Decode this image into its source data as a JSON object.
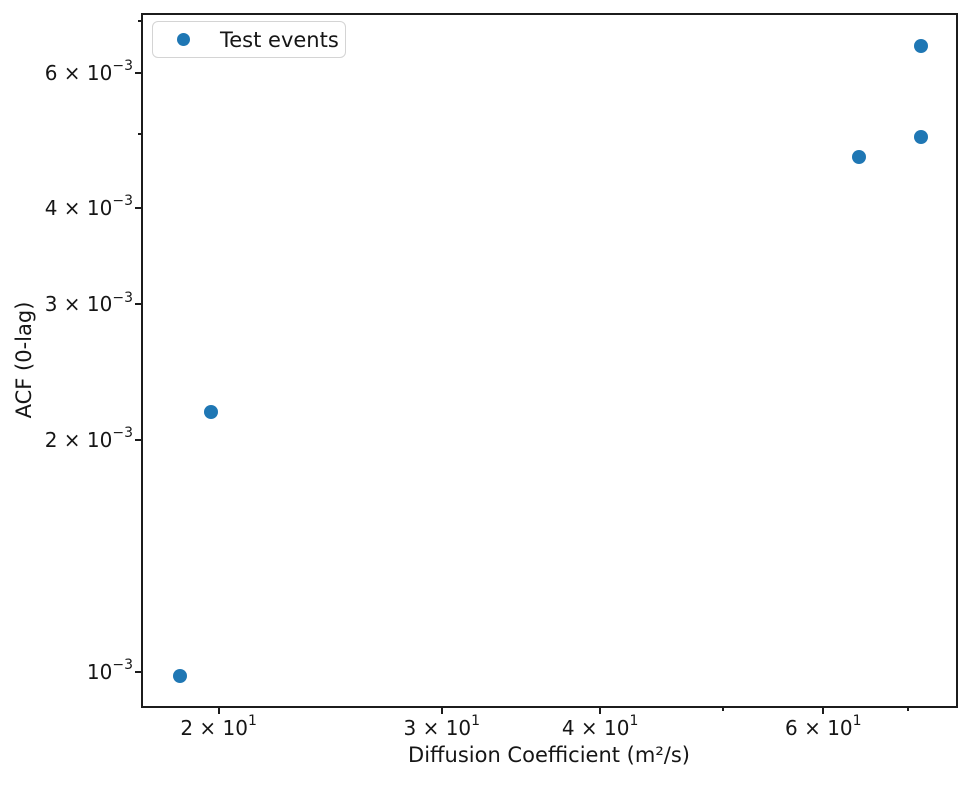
{
  "chart_data": {
    "type": "scatter",
    "title": "",
    "xlabel": "Diffusion Coefficient (m²/s)",
    "ylabel": "ACF (0-lag)",
    "xscale": "log",
    "yscale": "log",
    "xlim": [
      17.4,
      76.5
    ],
    "ylim": [
      0.0009,
      0.00715
    ],
    "grid": false,
    "legend": {
      "label": "Test events",
      "position": "upper left"
    },
    "series": [
      {
        "name": "Test events",
        "color": "#1f77b4",
        "marker": "circle",
        "points": [
          {
            "x": 18.6,
            "y": 0.00099
          },
          {
            "x": 19.7,
            "y": 0.00218
          },
          {
            "x": 63.9,
            "y": 0.00467
          },
          {
            "x": 71.5,
            "y": 0.00496
          },
          {
            "x": 71.5,
            "y": 0.00652
          }
        ]
      }
    ],
    "xticks": [
      {
        "v": 20,
        "base": "2 × 10",
        "exp": "1"
      },
      {
        "v": 30,
        "base": "3 × 10",
        "exp": "1"
      },
      {
        "v": 40,
        "base": "4 × 10",
        "exp": "1"
      },
      {
        "v": 50
      },
      {
        "v": 60,
        "base": "6 × 10",
        "exp": "1"
      },
      {
        "v": 70
      }
    ],
    "yticks": [
      {
        "v": 0.001,
        "base": "10",
        "exp": "−3"
      },
      {
        "v": 0.002,
        "base": "2 × 10",
        "exp": "−3"
      },
      {
        "v": 0.003,
        "base": "3 × 10",
        "exp": "−3"
      },
      {
        "v": 0.004,
        "base": "4 × 10",
        "exp": "−3"
      },
      {
        "v": 0.005
      },
      {
        "v": 0.006,
        "base": "6 × 10",
        "exp": "−3"
      },
      {
        "v": 0.007
      }
    ],
    "colors": {
      "marker": "#1f77b4",
      "axis": "#1c1c1c",
      "background": "#ffffff"
    }
  }
}
